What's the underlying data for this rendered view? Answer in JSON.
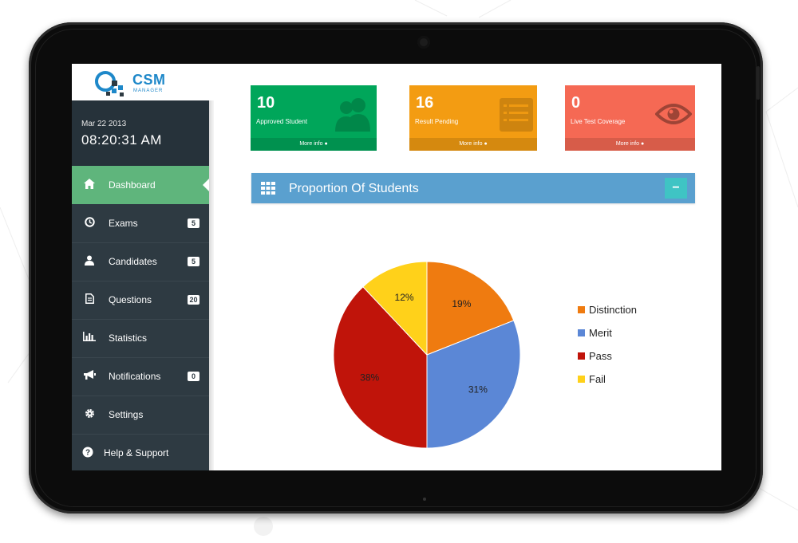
{
  "logo": {
    "name": "CSM",
    "tagline": "MANAGER"
  },
  "clock": {
    "date": "Mar 22 2013",
    "time": "08:20:31 AM"
  },
  "sidebar": {
    "items": [
      {
        "label": "Dashboard",
        "icon": "home-icon",
        "badge": ""
      },
      {
        "label": "Exams",
        "icon": "clock-icon",
        "badge": "5"
      },
      {
        "label": "Candidates",
        "icon": "user-icon",
        "badge": "5"
      },
      {
        "label": "Questions",
        "icon": "document-icon",
        "badge": "20"
      },
      {
        "label": "Statistics",
        "icon": "bar-chart-icon",
        "badge": ""
      },
      {
        "label": "Notifications",
        "icon": "megaphone-icon",
        "badge": "0"
      },
      {
        "label": "Settings",
        "icon": "gear-icon",
        "badge": ""
      },
      {
        "label": "Help & Support",
        "icon": "help-icon",
        "badge": ""
      }
    ]
  },
  "cards": [
    {
      "value": "10",
      "label": "Approved Student",
      "footer": "More info",
      "color": "#00a65a",
      "icon": "users-icon"
    },
    {
      "value": "16",
      "label": "Result Pending",
      "footer": "More info",
      "color": "#f39c12",
      "icon": "list-icon"
    },
    {
      "value": "0",
      "label": "Live Test Coverage",
      "footer": "More info",
      "color": "#f56954",
      "icon": "eye-icon"
    }
  ],
  "panel": {
    "title": "Proportion Of Students",
    "collapse": "−"
  },
  "chart_data": {
    "type": "pie",
    "categories": [
      "Distinction",
      "Merit",
      "Pass",
      "Fail"
    ],
    "values": [
      19,
      31,
      38,
      12
    ],
    "labels": [
      "19%",
      "31%",
      "38%",
      "12%"
    ],
    "colors": [
      "#ef7b10",
      "#5b87d6",
      "#c0140a",
      "#ffd11a"
    ],
    "legend": "right"
  }
}
